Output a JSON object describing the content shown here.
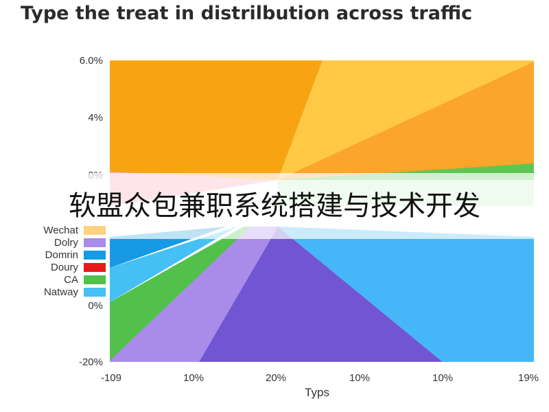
{
  "watermark": "软盟众包兼职系统搭建与技术开发",
  "chart_data": {
    "type": "area",
    "title": "Type the treat in distrilbution across traffic",
    "xlabel": "Typs",
    "x_tick_labels": [
      "-109",
      "10%",
      "20%",
      "10%",
      "10%",
      "19%"
    ],
    "y_tick_labels": [
      "6.0%",
      "4%",
      "0%",
      "0%",
      "-20%"
    ],
    "legend": {
      "placement": "left",
      "entries": [
        {
          "name": "Wechat",
          "color": "#FFD27F"
        },
        {
          "name": "Dolry",
          "color": "#A98BEA"
        },
        {
          "name": "Domrin",
          "color": "#1899E3"
        },
        {
          "name": "Doury",
          "color": "#E8191B"
        },
        {
          "name": "CA",
          "color": "#52C14B"
        },
        {
          "name": "Natway",
          "color": "#45C0F5"
        }
      ]
    },
    "grid": false
  }
}
